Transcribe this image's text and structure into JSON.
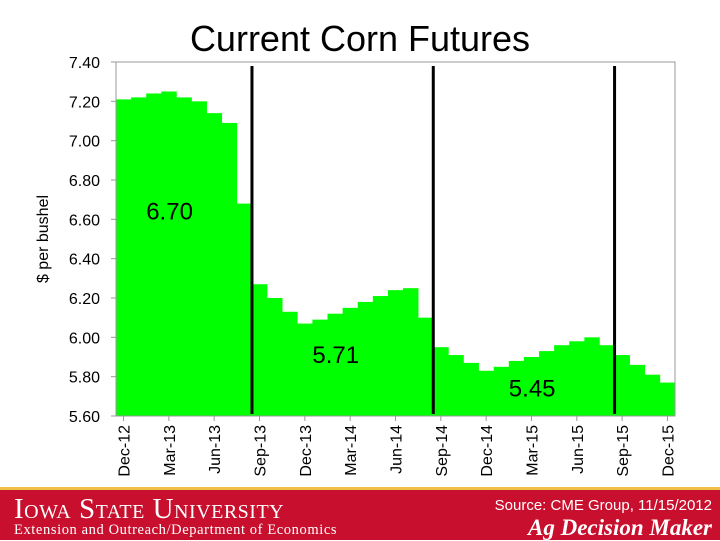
{
  "chart_data": {
    "type": "bar",
    "title": "Current Corn Futures",
    "ylabel": "$ per bushel",
    "xlabel": "",
    "ylim": [
      5.6,
      7.4
    ],
    "yticks": [
      "7.40",
      "7.20",
      "7.00",
      "6.80",
      "6.60",
      "6.40",
      "6.20",
      "6.00",
      "5.80",
      "5.60"
    ],
    "xticks": [
      "Dec-12",
      "Mar-13",
      "Jun-13",
      "Sep-13",
      "Dec-13",
      "Mar-14",
      "Jun-14",
      "Sep-14",
      "Dec-14",
      "Mar-15",
      "Jun-15",
      "Sep-15",
      "Dec-15"
    ],
    "categories": [
      "Dec-12",
      "Jan-13",
      "Feb-13",
      "Mar-13",
      "Apr-13",
      "May-13",
      "Jun-13",
      "Jul-13",
      "Aug-13",
      "Sep-13",
      "Oct-13",
      "Nov-13",
      "Dec-13",
      "Jan-14",
      "Feb-14",
      "Mar-14",
      "Apr-14",
      "May-14",
      "Jun-14",
      "Jul-14",
      "Aug-14",
      "Sep-14",
      "Oct-14",
      "Nov-14",
      "Dec-14",
      "Jan-15",
      "Feb-15",
      "Mar-15",
      "Apr-15",
      "May-15",
      "Jun-15",
      "Jul-15",
      "Aug-15",
      "Sep-15",
      "Oct-15",
      "Nov-15",
      "Dec-15"
    ],
    "values": [
      7.21,
      7.22,
      7.24,
      7.25,
      7.22,
      7.2,
      7.14,
      7.09,
      6.68,
      6.27,
      6.2,
      6.13,
      6.07,
      6.09,
      6.12,
      6.15,
      6.18,
      6.21,
      6.24,
      6.25,
      6.1,
      5.95,
      5.91,
      5.87,
      5.83,
      5.85,
      5.88,
      5.9,
      5.93,
      5.96,
      5.98,
      6.0,
      5.96,
      5.91,
      5.86,
      5.81,
      5.77
    ],
    "bar_color": "#00ff00",
    "dividers_after": [
      "Aug-13",
      "Aug-14",
      "Aug-15"
    ],
    "annotations": [
      {
        "text": "6.70",
        "x": "Feb-13",
        "y": 6.6
      },
      {
        "text": "5.71",
        "x": "Jan-14",
        "y": 5.87
      },
      {
        "text": "5.45",
        "x": "Feb-15",
        "y": 5.7
      }
    ],
    "grid": false
  },
  "footer": {
    "university": "Iowa State University",
    "extension": "Extension and Outreach/Department of Economics",
    "source": "Source: CME Group, 11/15/2012",
    "brand": "Ag Decision Maker",
    "color": "#c8102e",
    "accent": "#f1be48"
  }
}
